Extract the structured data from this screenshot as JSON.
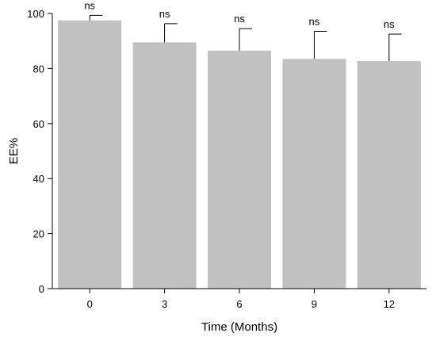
{
  "chart_data": {
    "type": "bar",
    "xlabel": "Time (Months)",
    "ylabel": "EE%",
    "categories": [
      "0",
      "3",
      "6",
      "9",
      "12"
    ],
    "values": [
      97.5,
      89.5,
      86.5,
      83.5,
      82.7
    ],
    "errors": [
      1.8,
      6.8,
      8.0,
      10.0,
      9.8
    ],
    "annotations": [
      "ns",
      "ns",
      "ns",
      "ns",
      "ns"
    ],
    "yticks": [
      0,
      20,
      40,
      60,
      80,
      100
    ],
    "ylim": [
      0,
      100
    ],
    "bar_color": "#c0c0c0",
    "grid": false
  }
}
